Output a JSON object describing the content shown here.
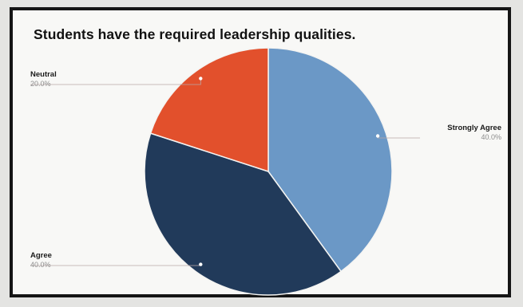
{
  "chart_data": {
    "type": "pie",
    "title": "Students have the required leadership qualities.",
    "categories": [
      "Strongly Agree",
      "Agree",
      "Neutral"
    ],
    "values": [
      40.0,
      40.0,
      20.0
    ],
    "percent_labels": [
      "40.0%",
      "40.0%",
      "20.0%"
    ],
    "colors": [
      "#6b98c6",
      "#213a5a",
      "#e2502c"
    ],
    "start_angle_deg": 0,
    "direction": "clockwise",
    "legend": "none",
    "grid": false
  }
}
